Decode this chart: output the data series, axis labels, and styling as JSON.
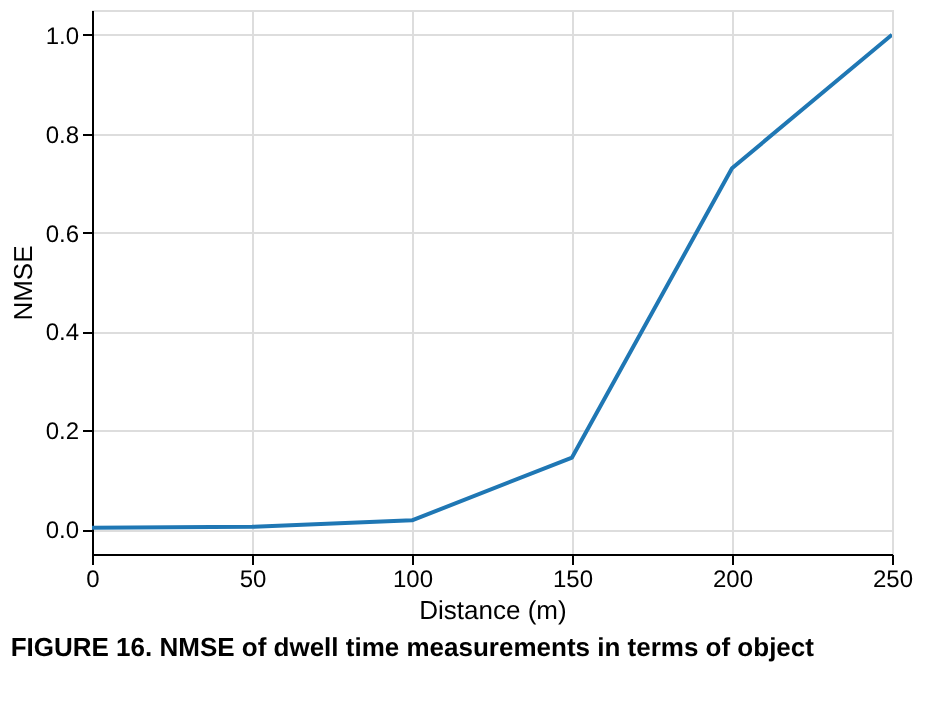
{
  "chart_data": {
    "type": "line",
    "xlabel": "Distance (m)",
    "ylabel": "NMSE",
    "x": [
      0,
      50,
      100,
      150,
      200,
      250
    ],
    "series": [
      {
        "color": "#1f77b4",
        "values": [
          0.003,
          0.005,
          0.018,
          0.145,
          0.73,
          1.0
        ]
      }
    ],
    "xlim": [
      0,
      250
    ],
    "xticks": [
      0,
      50,
      100,
      150,
      200,
      250
    ],
    "ylim": [
      -0.05,
      1.05
    ],
    "yticks": [
      {
        "value": 0,
        "label": "0.0"
      },
      0.2,
      0.4,
      0.6,
      0.8,
      {
        "value": 1,
        "label": "1.0"
      }
    ],
    "grid": true,
    "legend": false,
    "marker": "none",
    "line_style": "solid",
    "annotations": [
      "FIGURE 16. NMSE of dwell time measurements in terms of object"
    ]
  }
}
